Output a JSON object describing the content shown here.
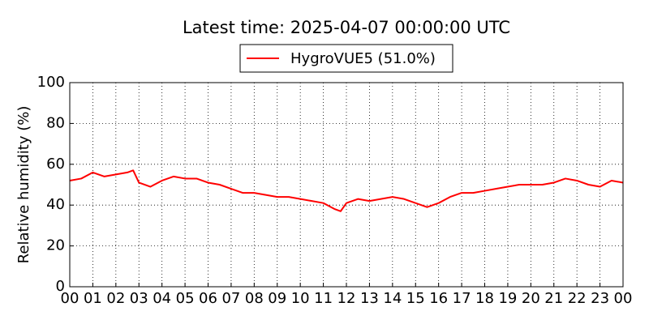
{
  "chart_data": {
    "type": "line",
    "title": "Latest time: 2025-04-07 00:00:00 UTC",
    "y_label": "Relative humidity (%)",
    "x": [
      0,
      0.5,
      1,
      1.5,
      2,
      2.5,
      2.75,
      3,
      3.5,
      4,
      4.5,
      5,
      5.5,
      6,
      6.5,
      7,
      7.5,
      8,
      8.5,
      9,
      9.5,
      10,
      10.5,
      11,
      11.5,
      11.75,
      12,
      12.5,
      13,
      13.5,
      14,
      14.5,
      15,
      15.5,
      16,
      16.5,
      17,
      17.5,
      18,
      18.5,
      19,
      19.5,
      20,
      20.5,
      21,
      21.5,
      22,
      22.5,
      23,
      23.5,
      24
    ],
    "series": [
      {
        "name": "HygroVUE5 (51.0%)",
        "color": "#ff0000",
        "values": [
          52,
          53,
          56,
          54,
          55,
          56,
          57,
          51,
          49,
          52,
          54,
          53,
          53,
          51,
          50,
          48,
          46,
          46,
          45,
          44,
          44,
          43,
          42,
          41,
          38,
          37,
          41,
          43,
          42,
          43,
          44,
          43,
          41,
          39,
          41,
          44,
          46,
          46,
          47,
          48,
          49,
          50,
          50,
          50,
          51,
          53,
          52,
          50,
          49,
          52,
          51
        ]
      }
    ],
    "xlim": [
      0,
      24
    ],
    "xticks": [
      {
        "value": 0,
        "label": "00"
      },
      {
        "value": 1,
        "label": "01"
      },
      {
        "value": 2,
        "label": "02"
      },
      {
        "value": 3,
        "label": "03"
      },
      {
        "value": 4,
        "label": "04"
      },
      {
        "value": 5,
        "label": "05"
      },
      {
        "value": 6,
        "label": "06"
      },
      {
        "value": 7,
        "label": "07"
      },
      {
        "value": 8,
        "label": "08"
      },
      {
        "value": 9,
        "label": "09"
      },
      {
        "value": 10,
        "label": "10"
      },
      {
        "value": 11,
        "label": "11"
      },
      {
        "value": 12,
        "label": "12"
      },
      {
        "value": 13,
        "label": "13"
      },
      {
        "value": 14,
        "label": "14"
      },
      {
        "value": 15,
        "label": "15"
      },
      {
        "value": 16,
        "label": "16"
      },
      {
        "value": 17,
        "label": "17"
      },
      {
        "value": 18,
        "label": "18"
      },
      {
        "value": 19,
        "label": "19"
      },
      {
        "value": 20,
        "label": "20"
      },
      {
        "value": 21,
        "label": "21"
      },
      {
        "value": 22,
        "label": "22"
      },
      {
        "value": 23,
        "label": "23"
      },
      {
        "value": 24,
        "label": "00"
      }
    ],
    "ylim": [
      0,
      100
    ],
    "yticks": [
      0,
      20,
      40,
      60,
      80,
      100
    ],
    "grid": true,
    "legend": "top"
  }
}
